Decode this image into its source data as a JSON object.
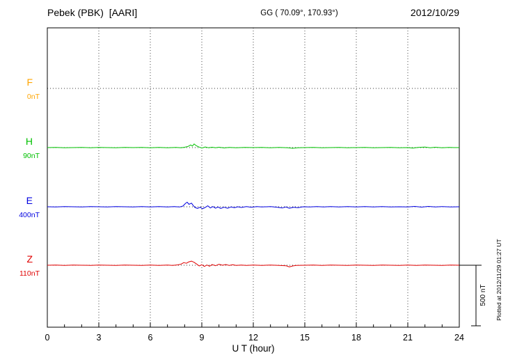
{
  "header": {
    "station": "Pebek (PBK)  [AARI]",
    "coords": "GG ( 70.09°, 170.93°)",
    "date": "2012/10/29"
  },
  "footer": {
    "plotted_at": "Plotted at 2012/11/29 01:27 UT"
  },
  "chart_data": {
    "type": "line",
    "title": "Pebek (PBK) [AARI]",
    "subtitle": "GG ( 70.09°, 170.93°)",
    "date": "2012/10/29",
    "xlabel": "U T (hour)",
    "ylabel": "",
    "y_units": "nT",
    "xlim": [
      0,
      24
    ],
    "x_ticks": [
      0,
      3,
      6,
      9,
      12,
      15,
      18,
      21,
      24
    ],
    "grid": "dotted vertical lines at 3-hour ticks, dotted horizontal baselines per channel",
    "legend_position": "left margin channel labels",
    "scale_bar": {
      "label": "500 nT",
      "nT": 500
    },
    "colors": {
      "F": "#FFA500",
      "H": "#00C000",
      "E": "#0000E0",
      "Z": "#E00000"
    },
    "series": [
      {
        "name": "F",
        "baseline_label": "0nT",
        "color": "#FFA500",
        "points": []
      },
      {
        "name": "H",
        "baseline_label": "90nT",
        "color": "#00C000",
        "points": [
          [
            0,
            0
          ],
          [
            0.5,
            1
          ],
          [
            1,
            -1
          ],
          [
            1.5,
            0
          ],
          [
            2,
            2
          ],
          [
            2.5,
            -1
          ],
          [
            3,
            1
          ],
          [
            3.5,
            0
          ],
          [
            4,
            -1
          ],
          [
            4.5,
            1
          ],
          [
            5,
            0
          ],
          [
            5.5,
            2
          ],
          [
            6,
            -1
          ],
          [
            6.5,
            1
          ],
          [
            7,
            -2
          ],
          [
            7.5,
            1
          ],
          [
            7.8,
            -2
          ],
          [
            8,
            3
          ],
          [
            8.2,
            10
          ],
          [
            8.35,
            22
          ],
          [
            8.45,
            12
          ],
          [
            8.55,
            30
          ],
          [
            8.65,
            18
          ],
          [
            8.8,
            7
          ],
          [
            9,
            -4
          ],
          [
            9.2,
            5
          ],
          [
            9.4,
            -2
          ],
          [
            9.6,
            3
          ],
          [
            9.8,
            -1
          ],
          [
            10,
            3
          ],
          [
            10.3,
            -3
          ],
          [
            10.6,
            2
          ],
          [
            11,
            -1
          ],
          [
            11.5,
            2
          ],
          [
            12,
            0
          ],
          [
            12.5,
            1
          ],
          [
            13,
            -1
          ],
          [
            13.5,
            1
          ],
          [
            14,
            -2
          ],
          [
            14.3,
            -6
          ],
          [
            14.6,
            -2
          ],
          [
            15,
            0
          ],
          [
            15.5,
            1
          ],
          [
            16,
            -1
          ],
          [
            16.5,
            0
          ],
          [
            17,
            1
          ],
          [
            17.5,
            -1
          ],
          [
            18,
            0
          ],
          [
            18.5,
            1
          ],
          [
            19,
            -1
          ],
          [
            19.5,
            0
          ],
          [
            20,
            1
          ],
          [
            20.5,
            -1
          ],
          [
            21,
            0
          ],
          [
            21.3,
            -4
          ],
          [
            21.6,
            2
          ],
          [
            22,
            4
          ],
          [
            22.3,
            -2
          ],
          [
            22.6,
            3
          ],
          [
            23,
            -1
          ],
          [
            23.4,
            2
          ],
          [
            23.7,
            0
          ],
          [
            24,
            0
          ]
        ]
      },
      {
        "name": "E",
        "baseline_label": "400nT",
        "color": "#0000E0",
        "points": [
          [
            0,
            0
          ],
          [
            0.5,
            -1
          ],
          [
            1,
            1
          ],
          [
            1.5,
            0
          ],
          [
            2,
            -2
          ],
          [
            2.5,
            1
          ],
          [
            3,
            0
          ],
          [
            3.5,
            -1
          ],
          [
            4,
            2
          ],
          [
            4.5,
            0
          ],
          [
            5,
            -2
          ],
          [
            5.5,
            2
          ],
          [
            6,
            -1
          ],
          [
            6.5,
            1
          ],
          [
            7,
            -2
          ],
          [
            7.4,
            2
          ],
          [
            7.7,
            -2
          ],
          [
            7.9,
            6
          ],
          [
            8.05,
            28
          ],
          [
            8.15,
            38
          ],
          [
            8.25,
            20
          ],
          [
            8.4,
            30
          ],
          [
            8.5,
            10
          ],
          [
            8.6,
            -6
          ],
          [
            8.75,
            -14
          ],
          [
            8.9,
            -4
          ],
          [
            9.05,
            -16
          ],
          [
            9.2,
            -6
          ],
          [
            9.35,
            8
          ],
          [
            9.5,
            -10
          ],
          [
            9.65,
            2
          ],
          [
            9.8,
            -12
          ],
          [
            9.95,
            -2
          ],
          [
            10.1,
            -14
          ],
          [
            10.3,
            -4
          ],
          [
            10.5,
            -12
          ],
          [
            10.7,
            -2
          ],
          [
            10.9,
            -8
          ],
          [
            11.1,
            0
          ],
          [
            11.3,
            -6
          ],
          [
            11.6,
            2
          ],
          [
            11.9,
            -4
          ],
          [
            12.2,
            2
          ],
          [
            12.5,
            -2
          ],
          [
            13,
            2
          ],
          [
            13.4,
            -4
          ],
          [
            13.7,
            -10
          ],
          [
            13.9,
            -2
          ],
          [
            14.1,
            -12
          ],
          [
            14.35,
            -4
          ],
          [
            14.6,
            -8
          ],
          [
            14.9,
            0
          ],
          [
            15.3,
            -2
          ],
          [
            15.7,
            2
          ],
          [
            16.1,
            -2
          ],
          [
            16.5,
            1
          ],
          [
            17,
            -1
          ],
          [
            17.5,
            1
          ],
          [
            18,
            -2
          ],
          [
            18.5,
            1
          ],
          [
            19,
            -1
          ],
          [
            19.5,
            1
          ],
          [
            20,
            -2
          ],
          [
            20.5,
            0
          ],
          [
            21,
            -2
          ],
          [
            21.4,
            3
          ],
          [
            21.8,
            -3
          ],
          [
            22.2,
            3
          ],
          [
            22.6,
            -2
          ],
          [
            23,
            2
          ],
          [
            23.5,
            -1
          ],
          [
            24,
            0
          ]
        ]
      },
      {
        "name": "Z",
        "baseline_label": "110nT",
        "color": "#E00000",
        "points": [
          [
            0,
            0
          ],
          [
            0.5,
            1
          ],
          [
            1,
            -1
          ],
          [
            1.5,
            1
          ],
          [
            2,
            0
          ],
          [
            2.5,
            -1
          ],
          [
            3,
            1
          ],
          [
            3.5,
            0
          ],
          [
            4,
            -1
          ],
          [
            4.5,
            1
          ],
          [
            5,
            0
          ],
          [
            5.5,
            -1
          ],
          [
            6,
            1
          ],
          [
            6.5,
            -1
          ],
          [
            7,
            1
          ],
          [
            7.3,
            -2
          ],
          [
            7.6,
            3
          ],
          [
            7.8,
            10
          ],
          [
            7.95,
            22
          ],
          [
            8.1,
            16
          ],
          [
            8.25,
            28
          ],
          [
            8.4,
            34
          ],
          [
            8.55,
            24
          ],
          [
            8.7,
            10
          ],
          [
            8.85,
            -6
          ],
          [
            9,
            4
          ],
          [
            9.15,
            -10
          ],
          [
            9.3,
            2
          ],
          [
            9.45,
            -8
          ],
          [
            9.6,
            6
          ],
          [
            9.8,
            -4
          ],
          [
            10,
            8
          ],
          [
            10.2,
            0
          ],
          [
            10.4,
            6
          ],
          [
            10.6,
            -2
          ],
          [
            10.8,
            4
          ],
          [
            11,
            -2
          ],
          [
            11.3,
            2
          ],
          [
            11.6,
            -2
          ],
          [
            12,
            1
          ],
          [
            12.5,
            -1
          ],
          [
            13,
            1
          ],
          [
            13.5,
            -2
          ],
          [
            13.9,
            -4
          ],
          [
            14.1,
            -14
          ],
          [
            14.3,
            -6
          ],
          [
            14.5,
            -2
          ],
          [
            15,
            0
          ],
          [
            15.5,
            1
          ],
          [
            16,
            -1
          ],
          [
            16.5,
            1
          ],
          [
            17,
            0
          ],
          [
            17.5,
            -1
          ],
          [
            18,
            1
          ],
          [
            18.5,
            0
          ],
          [
            19,
            -1
          ],
          [
            19.5,
            1
          ],
          [
            20,
            0
          ],
          [
            20.5,
            -1
          ],
          [
            21,
            1
          ],
          [
            21.5,
            -1
          ],
          [
            22,
            1
          ],
          [
            22.5,
            0
          ],
          [
            23,
            -1
          ],
          [
            23.5,
            1
          ],
          [
            24,
            0
          ]
        ]
      }
    ]
  }
}
